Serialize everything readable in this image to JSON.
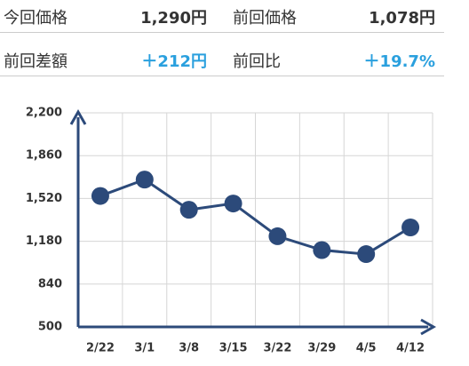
{
  "summary": [
    [
      "今回価格",
      "1,290円",
      "前回価格",
      "1,078円"
    ],
    [
      "前回差額",
      "＋212円",
      "前回比",
      "＋19.7%"
    ]
  ],
  "chart_data": {
    "type": "line",
    "categories": [
      "2/22",
      "3/1",
      "3/8",
      "3/15",
      "3/22",
      "3/29",
      "4/5",
      "4/12"
    ],
    "values": [
      1540,
      1670,
      1430,
      1480,
      1220,
      1110,
      1078,
      1290
    ],
    "color": "#2c4a7a",
    "ylim": [
      500,
      2200
    ],
    "yticks": [
      500,
      840,
      {
        "value": 1180,
        "label": "1,180"
      },
      {
        "value": 1520,
        "label": "1,520"
      },
      {
        "value": 1860,
        "label": "1,860"
      },
      {
        "value": 2200,
        "label": "2,200"
      }
    ],
    "grid": true
  }
}
